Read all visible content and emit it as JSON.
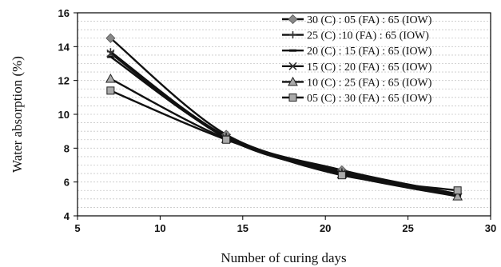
{
  "chart_data": {
    "type": "line",
    "xlabel": "Number of curing days",
    "ylabel": "Water absorption (%)",
    "xlim": [
      5,
      30
    ],
    "ylim": [
      4,
      16
    ],
    "xticks": [
      5,
      10,
      15,
      20,
      25,
      30
    ],
    "yticks": [
      4,
      6,
      8,
      10,
      12,
      14,
      16
    ],
    "grid": "horizontal dashed",
    "legend_position": "top-right",
    "x": [
      7,
      14,
      21,
      28
    ],
    "series": [
      {
        "name": "30 (C) : 05 (FA) : 65 (IOW)",
        "marker": "diamond",
        "color": "#888888",
        "values": [
          14.5,
          8.8,
          6.7,
          5.3
        ]
      },
      {
        "name": "25 (C) :10 (FA) : 65 (IOW)",
        "marker": "plus",
        "color": "#999999",
        "values": [
          13.7,
          8.7,
          6.6,
          5.25
        ]
      },
      {
        "name": "20 (C) : 15 (FA) : 65 (IOW)",
        "marker": "dash",
        "color": "#111111",
        "values": [
          13.4,
          8.65,
          6.55,
          5.2
        ]
      },
      {
        "name": "15 (C) : 20 (FA) : 65 (IOW)",
        "marker": "x",
        "color": "#444444",
        "values": [
          13.6,
          8.6,
          6.5,
          5.2
        ]
      },
      {
        "name": "10 (C) : 25 (FA) : 65 (IOW)",
        "marker": "triangle",
        "color": "#aaaaaa",
        "values": [
          12.1,
          8.55,
          6.45,
          5.15
        ]
      },
      {
        "name": "05 (C) : 30 (FA) : 65 (IOW)",
        "marker": "square",
        "color": "#aaaaaa",
        "values": [
          11.4,
          8.5,
          6.4,
          5.5
        ]
      }
    ]
  }
}
